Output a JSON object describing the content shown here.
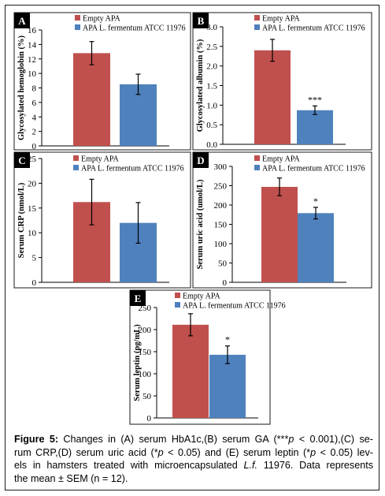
{
  "colors": {
    "empty": "#C0504D",
    "ferm": "#4F81BD",
    "panel_border": "#1a1a1a"
  },
  "legend": {
    "empty": "Empty APA",
    "ferm": "APA L. fermentum ATCC 11976"
  },
  "chart_data": [
    {
      "panel": "A",
      "type": "bar",
      "ylabel": "Glycosylated hemoglobin (%)",
      "ylim": [
        0,
        16
      ],
      "yticks": [
        "0",
        "2",
        "4",
        "6",
        "8",
        "10",
        "12",
        "14",
        "16"
      ],
      "series": [
        {
          "name": "Empty APA",
          "values": [
            12.8
          ],
          "error": [
            1.6
          ]
        },
        {
          "name": "APA L. fermentum ATCC 11976",
          "values": [
            8.5
          ],
          "error": [
            1.4
          ]
        }
      ],
      "annotations": []
    },
    {
      "panel": "B",
      "type": "bar",
      "ylabel": "Glycosylated albumin (%)",
      "ylim": [
        0,
        3.0
      ],
      "yticks": [
        "0.0",
        "0.5",
        "1.0",
        "1.5",
        "2.0",
        "2.5",
        "3.0"
      ],
      "series": [
        {
          "name": "Empty APA",
          "values": [
            2.4
          ],
          "error": [
            0.28
          ]
        },
        {
          "name": "APA L. fermentum ATCC 11976",
          "values": [
            0.87
          ],
          "error": [
            0.11
          ]
        }
      ],
      "annotations": [
        "***"
      ]
    },
    {
      "panel": "C",
      "type": "bar",
      "ylabel": "Serum CRP (nmol/L)",
      "ylim": [
        0,
        25
      ],
      "yticks": [
        "0",
        "5",
        "10",
        "15",
        "20",
        "25"
      ],
      "series": [
        {
          "name": "Empty APA",
          "values": [
            16.2
          ],
          "error": [
            4.6
          ]
        },
        {
          "name": "APA L. fermentum ATCC 11976",
          "values": [
            12.0
          ],
          "error": [
            4.1
          ]
        }
      ],
      "annotations": []
    },
    {
      "panel": "D",
      "type": "bar",
      "ylabel": "Serum uric acid (umol/L)",
      "ylim": [
        0,
        300
      ],
      "yticks": [
        "0",
        "50",
        "100",
        "150",
        "200",
        "250",
        "300"
      ],
      "series": [
        {
          "name": "Empty APA",
          "values": [
            247
          ],
          "error": [
            23
          ]
        },
        {
          "name": "APA L. fermentum ATCC 11976",
          "values": [
            179
          ],
          "error": [
            15
          ]
        }
      ],
      "annotations": [
        "*"
      ]
    },
    {
      "panel": "E",
      "type": "bar",
      "ylabel": "Serum leptin (pg/mL)",
      "ylim": [
        0,
        250
      ],
      "yticks": [
        "0",
        "50",
        "100",
        "150",
        "200",
        "250"
      ],
      "series": [
        {
          "name": "Empty APA",
          "values": [
            211
          ],
          "error": [
            25
          ]
        },
        {
          "name": "APA L. fermentum ATCC 11976",
          "values": [
            143
          ],
          "error": [
            20
          ]
        }
      ],
      "annotations": [
        "*"
      ]
    }
  ],
  "caption": {
    "lines": [
      [
        {
          "t": "Figure 5:",
          "b": 1
        },
        {
          "t": " Changes in (A) serum HbA1c,(B) serum GA (***"
        },
        {
          "t": "p",
          "i": 1
        },
        {
          "t": " < 0.001),(C) se-"
        }
      ],
      [
        {
          "t": "rum CRP,(D) serum uric acid (*"
        },
        {
          "t": "p",
          "i": 1
        },
        {
          "t": " < 0.05) and (E) serum leptin (*"
        },
        {
          "t": "p",
          "i": 1
        },
        {
          "t": " < 0.05) lev-"
        }
      ],
      [
        {
          "t": "els in hamsters treated with microencapsulated "
        },
        {
          "t": "L.f.",
          "i": 1
        },
        {
          "t": " 11976. Data represents"
        }
      ],
      [
        {
          "t": "the mean ± SEM (n = 12)."
        }
      ]
    ]
  }
}
